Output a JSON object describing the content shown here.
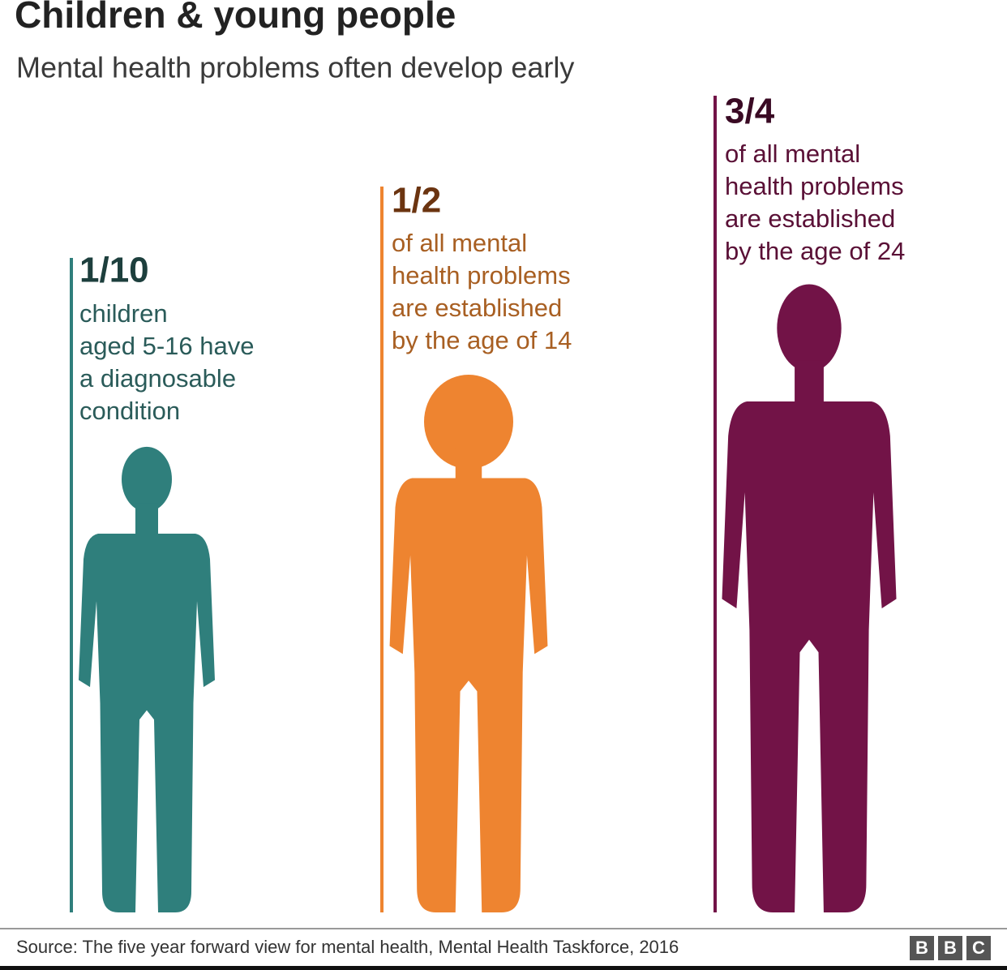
{
  "title": "Children & young people",
  "subtitle": "Mental health problems often develop early",
  "panels": [
    {
      "stat": "1/10",
      "lines": [
        "children",
        "aged 5-16 have",
        "a diagnosable",
        "condition"
      ]
    },
    {
      "stat": "1/2",
      "lines": [
        "of all mental",
        "health problems",
        "are established",
        "by the age of 14"
      ]
    },
    {
      "stat": "3/4",
      "lines": [
        "of all mental",
        "health problems",
        "are established",
        "by the age of 24"
      ]
    }
  ],
  "source": "Source: The five year forward view for mental health, Mental Health Taskforce, 2016",
  "logo": [
    "B",
    "B",
    "C"
  ]
}
